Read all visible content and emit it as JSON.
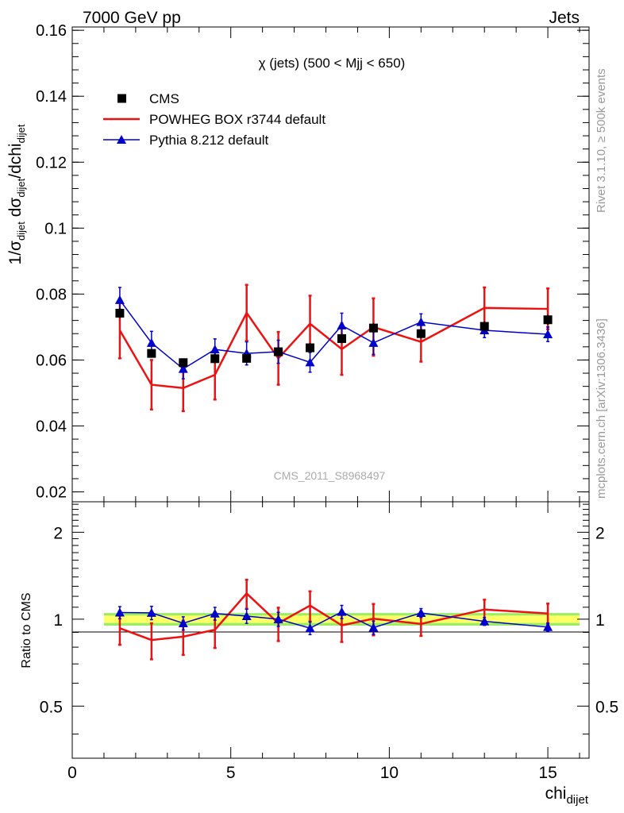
{
  "header": {
    "left": "7000 GeV pp",
    "right": "Jets"
  },
  "side_text": {
    "rivet": "Rivet 3.1.10, ≥ 500k events",
    "mcplots": "mcplots.cern.ch [arXiv:1306.3436]"
  },
  "watermark": "CMS_2011_S8968497",
  "colors": {
    "cms": "#000000",
    "powheg": "#ee1111",
    "pythia": "#0000cc",
    "band_inner": "#ffff66",
    "band_outer": "#99ee66"
  },
  "chart_data": [
    {
      "panel": "main",
      "type": "line",
      "title": "χ (jets) (500 < Mjj <  650)",
      "ylabel_parts": [
        "1/σ",
        "dijet",
        " dσ",
        "dijet",
        "/dchi",
        "dijet"
      ],
      "xlim": [
        0,
        16.3
      ],
      "ylim": [
        0.017,
        0.161
      ],
      "y_ticks": [
        0.02,
        0.04,
        0.06,
        0.08,
        0.1,
        0.12,
        0.14,
        0.16
      ],
      "y_tick_labels": [
        "0.02",
        "0.04",
        "0.06",
        "0.08",
        "0.1",
        "0.12",
        "0.14",
        "0.16"
      ],
      "legend": {
        "position": "top-left",
        "entries": [
          "CMS",
          "POWHEG BOX r3744 default",
          "Pythia 8.212 default"
        ]
      },
      "bin_edges": [
        1,
        2,
        3,
        4,
        5,
        6,
        7,
        8,
        9,
        10,
        12,
        14,
        16
      ],
      "x": [
        1.5,
        2.5,
        3.5,
        4.5,
        5.5,
        6.5,
        7.5,
        8.5,
        9.5,
        11,
        13,
        15
      ],
      "series": [
        {
          "name": "CMS",
          "style": "markers",
          "values": [
            0.0742,
            0.062,
            0.0592,
            0.0604,
            0.0605,
            0.0625,
            0.0637,
            0.0665,
            0.0697,
            0.068,
            0.0702,
            0.0722
          ],
          "errors": [
            0.0015,
            0.0013,
            0.0012,
            0.0013,
            0.0013,
            0.0013,
            0.0014,
            0.0014,
            0.0015,
            0.0014,
            0.0015,
            0.0015
          ]
        },
        {
          "name": "POWHEG BOX r3744 default",
          "style": "step",
          "values": [
            0.069,
            0.0525,
            0.0515,
            0.0555,
            0.0743,
            0.0605,
            0.071,
            0.0633,
            0.07,
            0.0655,
            0.0758,
            0.0755
          ],
          "errors": [
            0.0085,
            0.0075,
            0.007,
            0.0075,
            0.0085,
            0.008,
            0.0085,
            0.0078,
            0.0087,
            0.006,
            0.0062,
            0.0062
          ]
        },
        {
          "name": "Pythia 8.212 default",
          "style": "line-triangle",
          "values": [
            0.0782,
            0.0652,
            0.0573,
            0.0632,
            0.062,
            0.0625,
            0.0593,
            0.0705,
            0.0652,
            0.0715,
            0.069,
            0.0678
          ],
          "errors": [
            0.0038,
            0.0035,
            0.003,
            0.0032,
            0.0035,
            0.0035,
            0.003,
            0.0037,
            0.0035,
            0.0025,
            0.0022,
            0.0022
          ]
        }
      ]
    },
    {
      "panel": "ratio",
      "type": "line",
      "ylabel": "Ratio to CMS",
      "xlabel": "chi",
      "xlabel_sub": "dijet",
      "xlim": [
        0,
        16.3
      ],
      "ylim": [
        0.33,
        2.55
      ],
      "y_scale": "log",
      "y_ticks": [
        0.5,
        1,
        2
      ],
      "y_tick_labels": [
        "0.5",
        "1",
        "2"
      ],
      "x_ticks": [
        0,
        5,
        10,
        15
      ],
      "x_tick_labels": [
        "0",
        "5",
        "10",
        "15"
      ],
      "band": {
        "inner": 0.03,
        "outer": 0.05
      },
      "series": [
        {
          "name": "POWHEG BOX r3744 default",
          "values": [
            0.93,
            0.847,
            0.87,
            0.919,
            1.228,
            0.968,
            1.115,
            0.952,
            1.004,
            0.963,
            1.08,
            1.046
          ],
          "errors": [
            0.115,
            0.121,
            0.118,
            0.124,
            0.141,
            0.128,
            0.134,
            0.118,
            0.125,
            0.088,
            0.088,
            0.086
          ]
        },
        {
          "name": "Pythia 8.212 default",
          "values": [
            1.054,
            1.052,
            0.968,
            1.046,
            1.025,
            1.0,
            0.931,
            1.06,
            0.935,
            1.051,
            0.983,
            0.939
          ],
          "errors": [
            0.051,
            0.056,
            0.051,
            0.053,
            0.058,
            0.056,
            0.047,
            0.056,
            0.05,
            0.037,
            0.031,
            0.031
          ]
        }
      ]
    }
  ]
}
